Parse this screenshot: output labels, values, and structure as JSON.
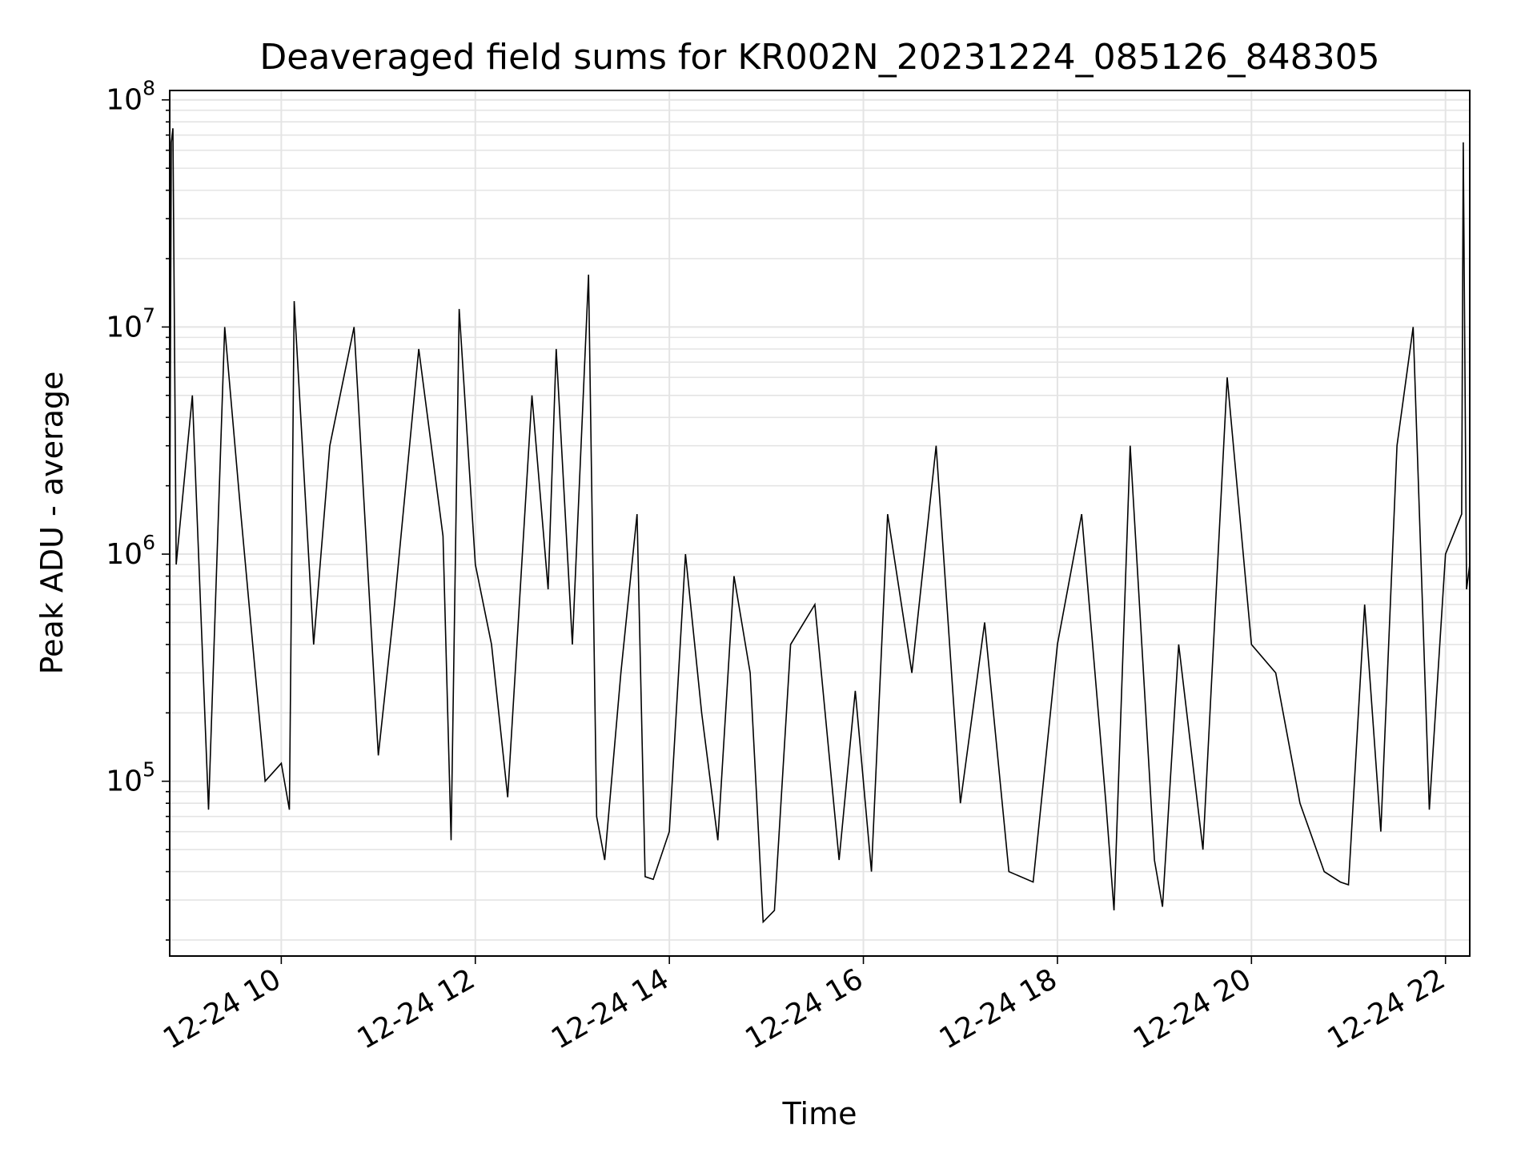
{
  "chart_data": {
    "type": "line",
    "title": "Deaveraged field sums for KR002N_20231224_085126_848305",
    "xlabel": "Time",
    "ylabel": "Peak ADU - average",
    "x_range": [
      "12-24 08:51",
      "12-24 22:15"
    ],
    "y_scale": "log",
    "ylim": [
      17000,
      110000000
    ],
    "grid": true,
    "legend": "none",
    "x_ticks": [
      "12-24 10",
      "12-24 12",
      "12-24 14",
      "12-24 16",
      "12-24 18",
      "12-24 20",
      "12-24 22"
    ],
    "y_ticks": [
      {
        "base": "10",
        "exp": "5",
        "value": 100000
      },
      {
        "base": "10",
        "exp": "6",
        "value": 1000000
      },
      {
        "base": "10",
        "exp": "7",
        "value": 10000000
      },
      {
        "base": "10",
        "exp": "8",
        "value": 100000000
      }
    ],
    "series": [
      {
        "color": "#000000",
        "points": [
          [
            "12-24 08:51",
            1200000
          ],
          [
            "12-24 08:52",
            65000000
          ],
          [
            "12-24 08:53",
            75000000
          ],
          [
            "12-24 08:55",
            900000
          ],
          [
            "12-24 09:05",
            5000000
          ],
          [
            "12-24 09:15",
            75000
          ],
          [
            "12-24 09:25",
            10000000
          ],
          [
            "12-24 09:35",
            1500000
          ],
          [
            "12-24 09:50",
            100000
          ],
          [
            "12-24 10:00",
            120000
          ],
          [
            "12-24 10:05",
            75000
          ],
          [
            "12-24 10:08",
            13000000
          ],
          [
            "12-24 10:20",
            400000
          ],
          [
            "12-24 10:30",
            3000000
          ],
          [
            "12-24 10:45",
            10000000
          ],
          [
            "12-24 11:00",
            130000
          ],
          [
            "12-24 11:10",
            600000
          ],
          [
            "12-24 11:25",
            8000000
          ],
          [
            "12-24 11:40",
            1200000
          ],
          [
            "12-24 11:45",
            55000
          ],
          [
            "12-24 11:50",
            12000000
          ],
          [
            "12-24 12:00",
            900000
          ],
          [
            "12-24 12:10",
            400000
          ],
          [
            "12-24 12:20",
            85000
          ],
          [
            "12-24 12:35",
            5000000
          ],
          [
            "12-24 12:45",
            700000
          ],
          [
            "12-24 12:50",
            8000000
          ],
          [
            "12-24 13:00",
            400000
          ],
          [
            "12-24 13:10",
            17000000
          ],
          [
            "12-24 13:15",
            70000
          ],
          [
            "12-24 13:20",
            45000
          ],
          [
            "12-24 13:30",
            300000
          ],
          [
            "12-24 13:40",
            1500000
          ],
          [
            "12-24 13:45",
            38000
          ],
          [
            "12-24 13:50",
            37000
          ],
          [
            "12-24 14:00",
            60000
          ],
          [
            "12-24 14:10",
            1000000
          ],
          [
            "12-24 14:20",
            200000
          ],
          [
            "12-24 14:30",
            55000
          ],
          [
            "12-24 14:40",
            800000
          ],
          [
            "12-24 14:50",
            300000
          ],
          [
            "12-24 14:58",
            24000
          ],
          [
            "12-24 15:05",
            27000
          ],
          [
            "12-24 15:15",
            400000
          ],
          [
            "12-24 15:30",
            600000
          ],
          [
            "12-24 15:45",
            45000
          ],
          [
            "12-24 15:55",
            250000
          ],
          [
            "12-24 16:05",
            40000
          ],
          [
            "12-24 16:15",
            1500000
          ],
          [
            "12-24 16:30",
            300000
          ],
          [
            "12-24 16:45",
            3000000
          ],
          [
            "12-24 17:00",
            80000
          ],
          [
            "12-24 17:15",
            500000
          ],
          [
            "12-24 17:30",
            40000
          ],
          [
            "12-24 17:45",
            36000
          ],
          [
            "12-24 18:00",
            400000
          ],
          [
            "12-24 18:15",
            1500000
          ],
          [
            "12-24 18:30",
            80000
          ],
          [
            "12-24 18:35",
            27000
          ],
          [
            "12-24 18:45",
            3000000
          ],
          [
            "12-24 19:00",
            45000
          ],
          [
            "12-24 19:05",
            28000
          ],
          [
            "12-24 19:15",
            400000
          ],
          [
            "12-24 19:30",
            50000
          ],
          [
            "12-24 19:45",
            6000000
          ],
          [
            "12-24 20:00",
            400000
          ],
          [
            "12-24 20:15",
            300000
          ],
          [
            "12-24 20:30",
            80000
          ],
          [
            "12-24 20:45",
            40000
          ],
          [
            "12-24 20:55",
            36000
          ],
          [
            "12-24 21:00",
            35000
          ],
          [
            "12-24 21:10",
            600000
          ],
          [
            "12-24 21:20",
            60000
          ],
          [
            "12-24 21:30",
            3000000
          ],
          [
            "12-24 21:40",
            10000000
          ],
          [
            "12-24 21:50",
            75000
          ],
          [
            "12-24 22:00",
            1000000
          ],
          [
            "12-24 22:10",
            1500000
          ],
          [
            "12-24 22:11",
            65000000
          ],
          [
            "12-24 22:13",
            700000
          ],
          [
            "12-24 22:15",
            900000
          ]
        ]
      }
    ]
  }
}
